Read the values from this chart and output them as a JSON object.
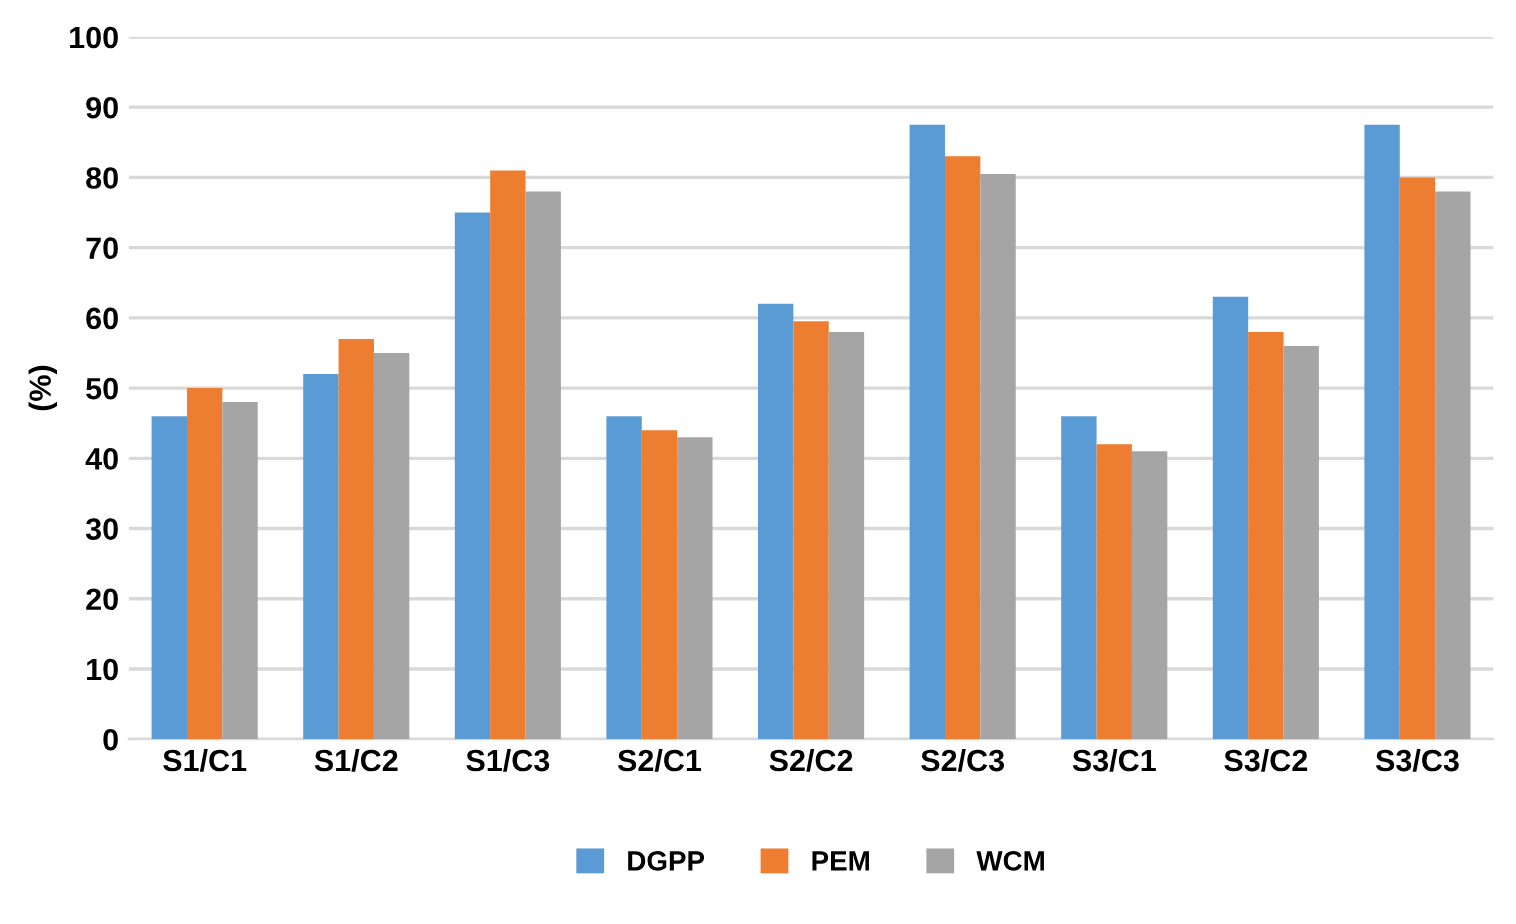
{
  "chart_data": {
    "type": "bar",
    "ylabel": "(%)",
    "categories": [
      "S1/C1",
      "S1/C2",
      "S1/C3",
      "S2/C1",
      "S2/C2",
      "S2/C3",
      "S3/C1",
      "S3/C2",
      "S3/C3"
    ],
    "series": [
      {
        "name": "DGPP",
        "color": "#5b9bd5",
        "values": [
          46,
          52,
          75,
          46,
          62,
          87.5,
          46,
          63,
          87.5
        ]
      },
      {
        "name": "PEM",
        "color": "#ed7d31",
        "values": [
          50,
          57,
          81,
          44,
          59.5,
          83,
          42,
          58,
          80
        ]
      },
      {
        "name": "WCM",
        "color": "#a5a5a5",
        "values": [
          48,
          55,
          78,
          43,
          58,
          80.5,
          41,
          56,
          78
        ]
      }
    ],
    "ylim": [
      0,
      100
    ],
    "yticks": [
      0,
      10,
      20,
      30,
      40,
      50,
      60,
      70,
      80,
      90,
      100
    ],
    "grid": "y",
    "legend": "bottom"
  }
}
